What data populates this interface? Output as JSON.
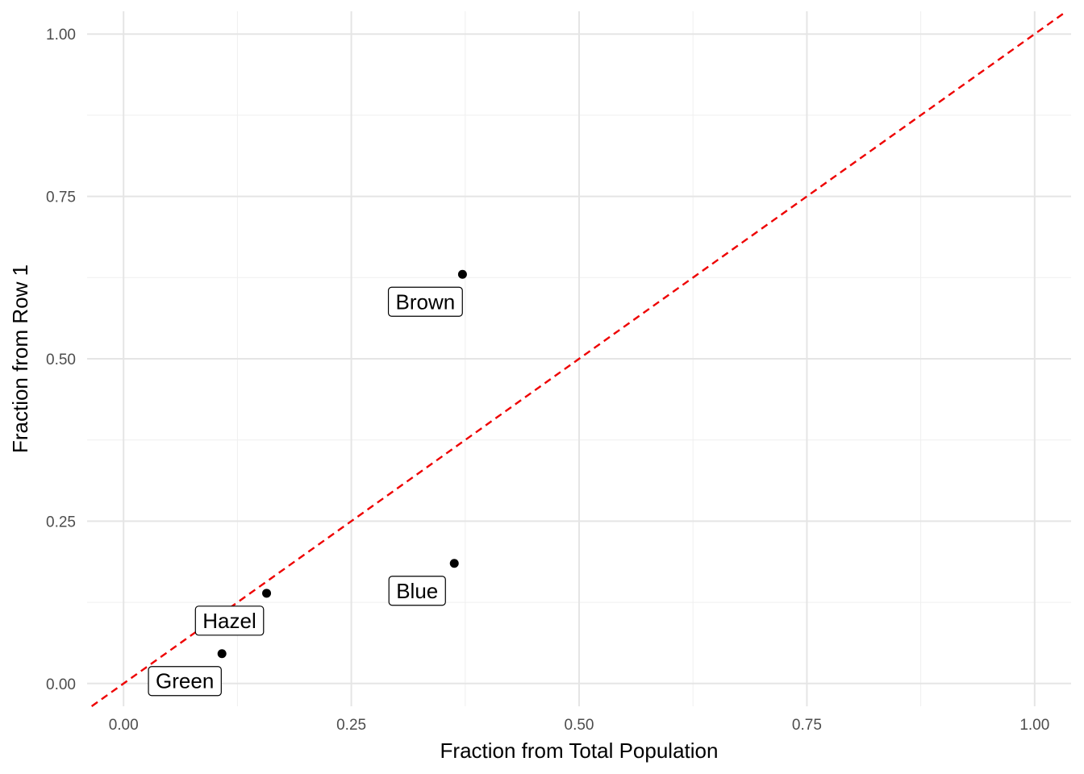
{
  "chart_data": {
    "type": "scatter",
    "title": "",
    "xlabel": "Fraction from Total Population",
    "ylabel": "Fraction from Row 1",
    "xlim": [
      -0.04,
      1.04
    ],
    "ylim": [
      -0.035,
      1.035
    ],
    "x_ticks": [
      0,
      0.25,
      0.5,
      0.75,
      1
    ],
    "x_tick_labels": [
      "0.00",
      "0.25",
      "0.50",
      "0.75",
      "1.00"
    ],
    "y_ticks": [
      0,
      0.25,
      0.5,
      0.75,
      1
    ],
    "y_tick_labels": [
      "0.00",
      "0.25",
      "0.50",
      "0.75",
      "1.00"
    ],
    "grid": true,
    "reference_line": {
      "slope": 1,
      "intercept": 0,
      "style": "dashed",
      "color": "#ee0000"
    },
    "point_color": "#000000",
    "points": [
      {
        "label": "Brown",
        "x": 0.372,
        "y": 0.63
      },
      {
        "label": "Blue",
        "x": 0.363,
        "y": 0.185
      },
      {
        "label": "Hazel",
        "x": 0.157,
        "y": 0.139
      },
      {
        "label": "Green",
        "x": 0.108,
        "y": 0.046
      }
    ]
  }
}
